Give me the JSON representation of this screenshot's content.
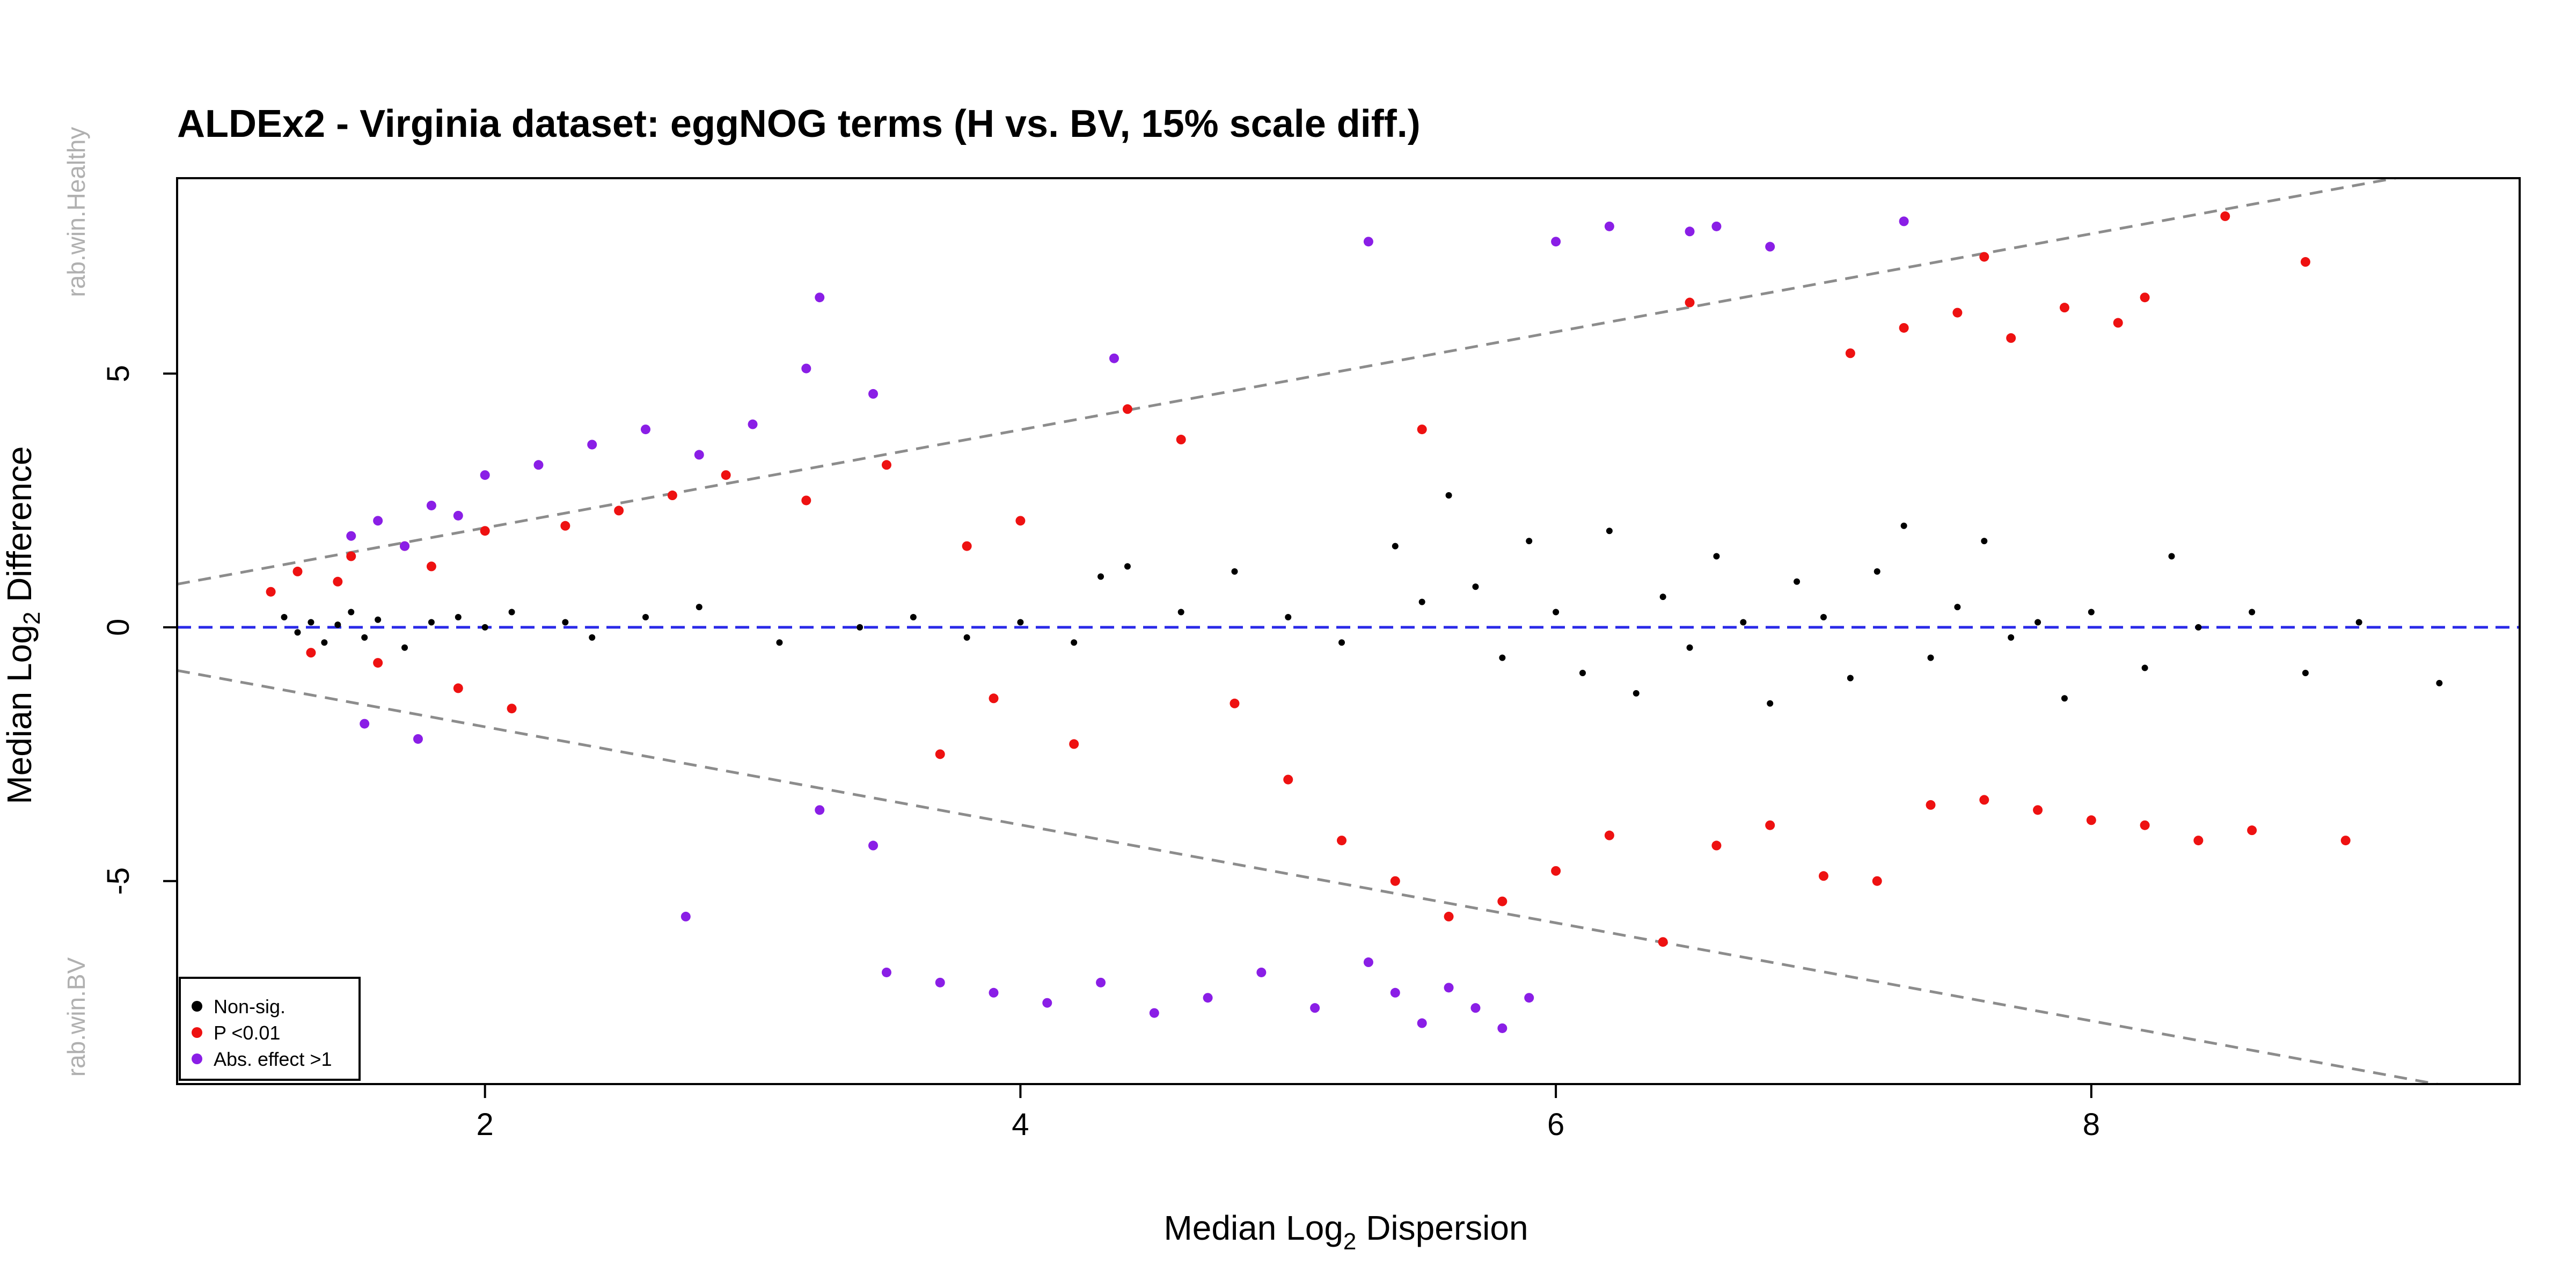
{
  "chart_data": {
    "type": "scatter",
    "title": "ALDEx2 - Virginia dataset: eggNOG terms (H vs. BV, 15% scale diff.)",
    "xlabel_main": "Median  Log",
    "xlabel_sub": "2",
    "xlabel_rest": "  Dispersion",
    "ylabel_main": "Median  Log",
    "ylabel_sub": "2",
    "ylabel_rest": "  Difference",
    "upper_group_label": "rab.win.Healthy",
    "lower_group_label": "rab.win.BV",
    "xlim": [
      0.85,
      9.6
    ],
    "ylim": [
      -9.0,
      8.85
    ],
    "x_ticks": [
      2,
      4,
      6,
      8
    ],
    "x_tick_labels": [
      "2",
      "4",
      "6",
      "8"
    ],
    "y_ticks": [
      -5,
      0,
      5
    ],
    "y_tick_labels": [
      "-5",
      "0",
      "5"
    ],
    "grid": false,
    "legend_position": "bottom-left",
    "reference_lines": {
      "zero_line_color": "#2a2ae8",
      "effect_line_color": "#8c8c8c",
      "upper_line": [
        [
          0.85,
          0.85
        ],
        [
          9.6,
          9.3
        ]
      ],
      "lower_line": [
        [
          0.85,
          -0.85
        ],
        [
          9.6,
          -9.3
        ]
      ]
    },
    "colors": {
      "nonsig": "#000000",
      "pval": "#ee1111",
      "effect": "#8a1ee6"
    },
    "series": [
      {
        "name": "Non-sig.",
        "color": "#000000",
        "points": [
          [
            1.25,
            0.2
          ],
          [
            1.3,
            -0.1
          ],
          [
            1.35,
            0.1
          ],
          [
            1.4,
            -0.3
          ],
          [
            1.45,
            0.05
          ],
          [
            1.5,
            0.3
          ],
          [
            1.55,
            -0.2
          ],
          [
            1.6,
            0.15
          ],
          [
            1.7,
            -0.4
          ],
          [
            1.8,
            0.1
          ],
          [
            1.9,
            0.2
          ],
          [
            2.0,
            0.0
          ],
          [
            2.1,
            0.3
          ],
          [
            2.3,
            0.1
          ],
          [
            2.4,
            -0.2
          ],
          [
            2.6,
            0.2
          ],
          [
            2.8,
            0.4
          ],
          [
            3.1,
            -0.3
          ],
          [
            3.4,
            0.0
          ],
          [
            3.6,
            0.2
          ],
          [
            3.8,
            -0.2
          ],
          [
            4.0,
            0.1
          ],
          [
            4.2,
            -0.3
          ],
          [
            4.3,
            1.0
          ],
          [
            4.4,
            1.2
          ],
          [
            4.6,
            0.3
          ],
          [
            4.8,
            1.1
          ],
          [
            5.0,
            0.2
          ],
          [
            5.2,
            -0.3
          ],
          [
            5.4,
            1.6
          ],
          [
            5.5,
            0.5
          ],
          [
            5.6,
            2.6
          ],
          [
            5.7,
            0.8
          ],
          [
            5.8,
            -0.6
          ],
          [
            5.9,
            1.7
          ],
          [
            6.0,
            0.3
          ],
          [
            6.1,
            -0.9
          ],
          [
            6.2,
            1.9
          ],
          [
            6.3,
            -1.3
          ],
          [
            6.4,
            0.6
          ],
          [
            6.5,
            -0.4
          ],
          [
            6.6,
            1.4
          ],
          [
            6.7,
            0.1
          ],
          [
            6.8,
            -1.5
          ],
          [
            6.9,
            0.9
          ],
          [
            7.0,
            0.2
          ],
          [
            7.1,
            -1.0
          ],
          [
            7.2,
            1.1
          ],
          [
            7.3,
            2.0
          ],
          [
            7.4,
            -0.6
          ],
          [
            7.5,
            0.4
          ],
          [
            7.6,
            1.7
          ],
          [
            7.7,
            -0.2
          ],
          [
            7.8,
            0.1
          ],
          [
            7.9,
            -1.4
          ],
          [
            8.0,
            0.3
          ],
          [
            8.2,
            -0.8
          ],
          [
            8.3,
            1.4
          ],
          [
            8.4,
            0.0
          ],
          [
            8.6,
            0.3
          ],
          [
            8.8,
            -0.9
          ],
          [
            9.0,
            0.1
          ],
          [
            9.3,
            -1.1
          ]
        ]
      },
      {
        "name": "P <0.01",
        "color": "#ee1111",
        "points": [
          [
            1.2,
            0.7
          ],
          [
            1.3,
            1.1
          ],
          [
            1.35,
            -0.5
          ],
          [
            1.45,
            0.9
          ],
          [
            1.5,
            1.4
          ],
          [
            1.6,
            -0.7
          ],
          [
            1.7,
            1.6
          ],
          [
            1.8,
            1.2
          ],
          [
            1.9,
            -1.2
          ],
          [
            2.0,
            1.9
          ],
          [
            2.1,
            -1.6
          ],
          [
            2.3,
            2.0
          ],
          [
            2.5,
            2.3
          ],
          [
            2.7,
            2.6
          ],
          [
            2.9,
            3.0
          ],
          [
            3.2,
            2.5
          ],
          [
            3.5,
            3.2
          ],
          [
            3.7,
            -2.5
          ],
          [
            3.8,
            1.6
          ],
          [
            3.9,
            -1.4
          ],
          [
            4.0,
            2.1
          ],
          [
            4.2,
            -2.3
          ],
          [
            4.4,
            4.3
          ],
          [
            4.6,
            3.7
          ],
          [
            4.8,
            -1.5
          ],
          [
            5.0,
            -3.0
          ],
          [
            5.2,
            -4.2
          ],
          [
            5.4,
            -5.0
          ],
          [
            5.6,
            -5.7
          ],
          [
            5.8,
            -5.4
          ],
          [
            6.0,
            -4.8
          ],
          [
            6.2,
            -4.1
          ],
          [
            6.4,
            -6.2
          ],
          [
            6.6,
            -4.3
          ],
          [
            6.8,
            -3.9
          ],
          [
            7.0,
            -4.9
          ],
          [
            7.2,
            -5.0
          ],
          [
            7.4,
            -3.5
          ],
          [
            7.6,
            -3.4
          ],
          [
            7.8,
            -3.6
          ],
          [
            8.0,
            -3.8
          ],
          [
            8.2,
            -3.9
          ],
          [
            8.4,
            -4.2
          ],
          [
            8.6,
            -4.0
          ],
          [
            8.95,
            -4.2
          ],
          [
            7.1,
            5.4
          ],
          [
            7.3,
            5.9
          ],
          [
            7.5,
            6.2
          ],
          [
            7.7,
            5.7
          ],
          [
            7.9,
            6.3
          ],
          [
            8.1,
            6.0
          ],
          [
            8.2,
            6.5
          ],
          [
            8.5,
            8.1
          ],
          [
            8.8,
            7.2
          ],
          [
            6.5,
            6.4
          ],
          [
            7.6,
            7.3
          ],
          [
            5.5,
            3.9
          ]
        ]
      },
      {
        "name": "Abs. effect >1",
        "color": "#8a1ee6",
        "points": [
          [
            1.5,
            1.8
          ],
          [
            1.6,
            2.1
          ],
          [
            1.7,
            1.6
          ],
          [
            1.8,
            2.4
          ],
          [
            1.9,
            2.2
          ],
          [
            2.0,
            3.0
          ],
          [
            2.2,
            3.2
          ],
          [
            2.4,
            3.6
          ],
          [
            2.6,
            3.9
          ],
          [
            2.8,
            3.4
          ],
          [
            3.0,
            4.0
          ],
          [
            3.2,
            5.1
          ],
          [
            3.25,
            6.5
          ],
          [
            3.45,
            4.6
          ],
          [
            4.35,
            5.3
          ],
          [
            1.55,
            -1.9
          ],
          [
            1.75,
            -2.2
          ],
          [
            2.75,
            -5.7
          ],
          [
            3.25,
            -3.6
          ],
          [
            3.45,
            -4.3
          ],
          [
            3.5,
            -6.8
          ],
          [
            3.7,
            -7.0
          ],
          [
            3.9,
            -7.2
          ],
          [
            4.1,
            -7.4
          ],
          [
            4.3,
            -7.0
          ],
          [
            4.5,
            -7.6
          ],
          [
            4.7,
            -7.3
          ],
          [
            4.9,
            -6.8
          ],
          [
            5.1,
            -7.5
          ],
          [
            5.3,
            -6.6
          ],
          [
            5.4,
            -7.2
          ],
          [
            5.5,
            -7.8
          ],
          [
            5.6,
            -7.1
          ],
          [
            5.7,
            -7.5
          ],
          [
            5.8,
            -7.9
          ],
          [
            5.9,
            -7.3
          ],
          [
            5.3,
            7.6
          ],
          [
            6.0,
            7.6
          ],
          [
            6.2,
            7.9
          ],
          [
            6.5,
            7.8
          ],
          [
            6.6,
            7.9
          ],
          [
            7.3,
            8.0
          ],
          [
            6.8,
            7.5
          ]
        ]
      }
    ]
  },
  "legend": {
    "items": [
      {
        "label": "Non-sig.",
        "color": "#000000"
      },
      {
        "label": "P <0.01",
        "color": "#ee1111"
      },
      {
        "label": "Abs. effect >1",
        "color": "#8a1ee6"
      }
    ]
  }
}
